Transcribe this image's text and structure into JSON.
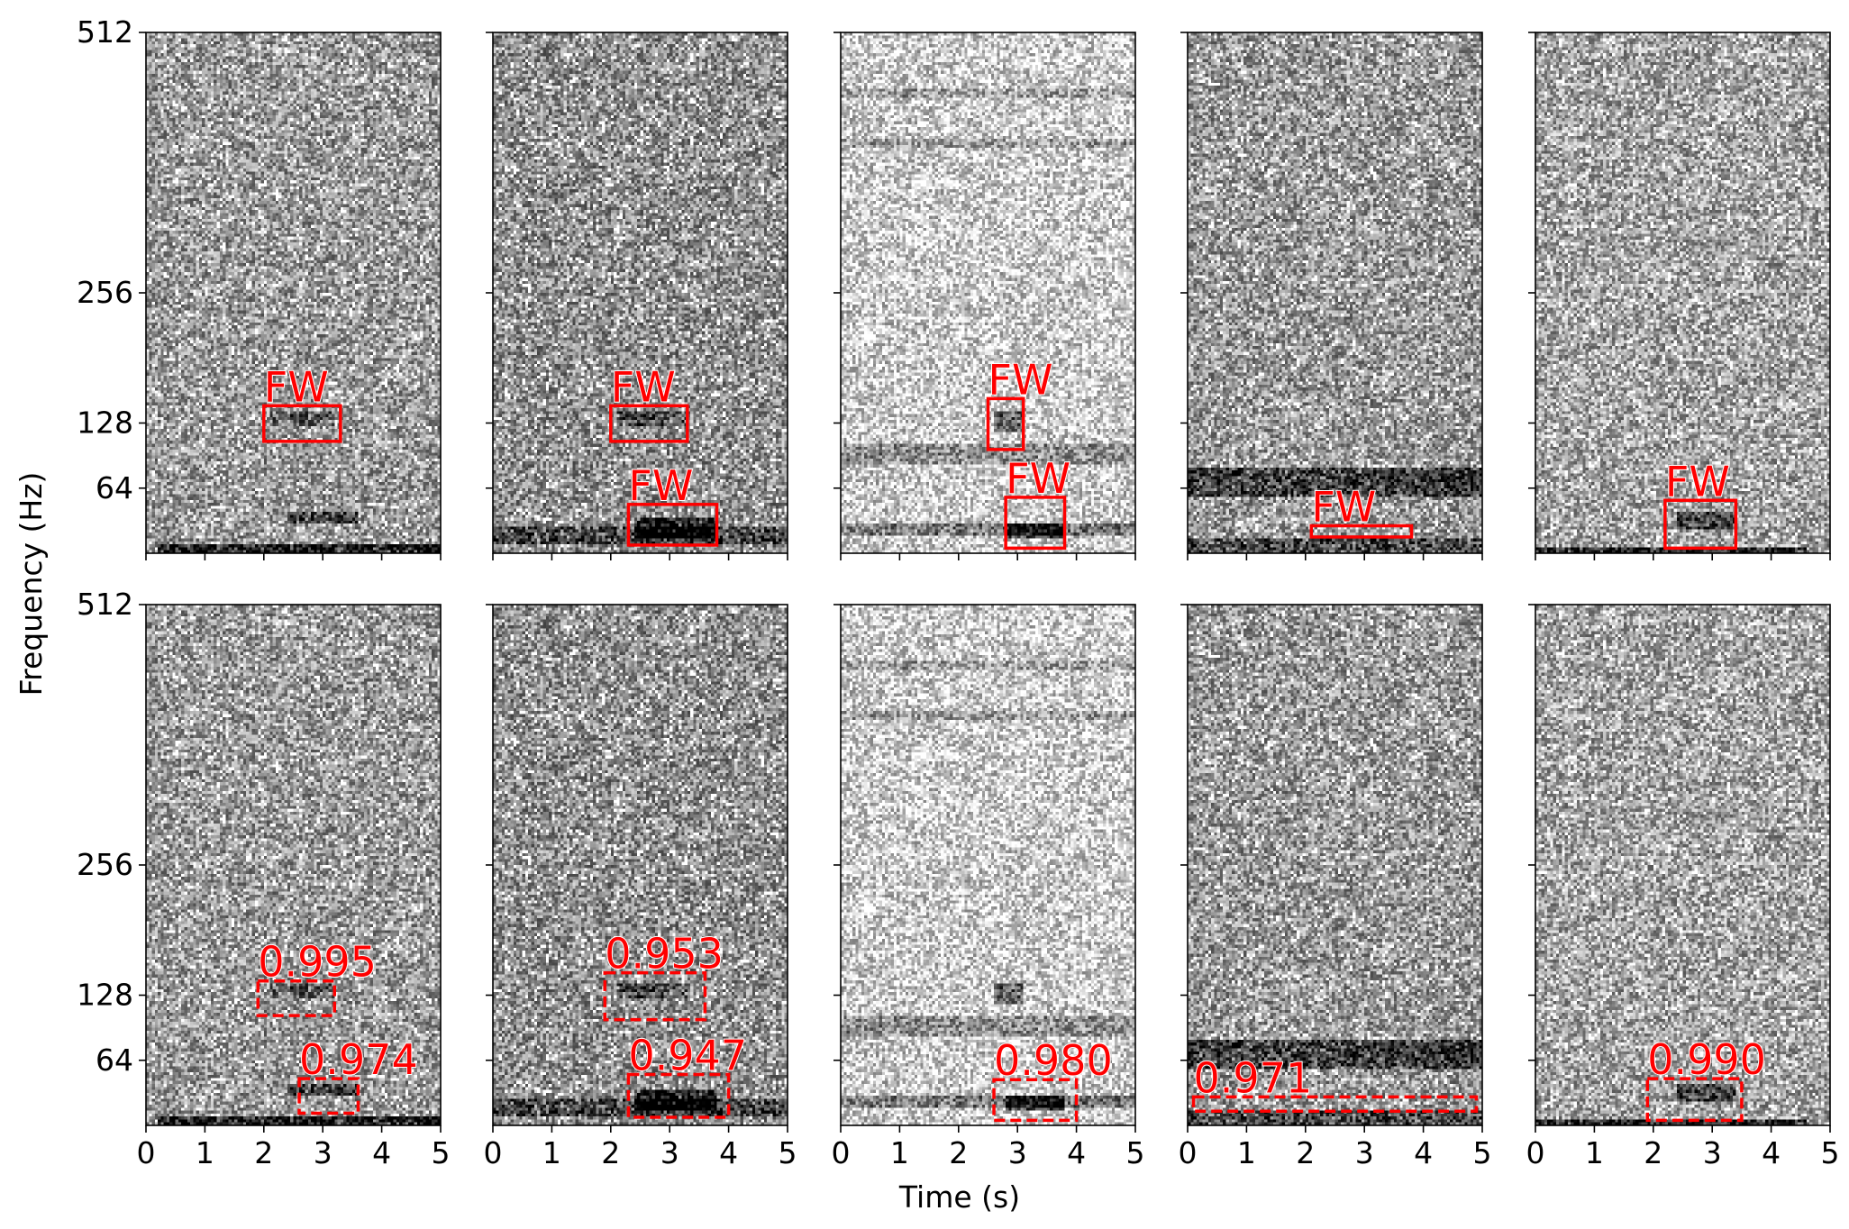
{
  "figure": {
    "xlabel": "Time (s)",
    "ylabel": "Frequency (Hz)",
    "colors": {
      "box": "#ff0000",
      "axis": "#000000"
    }
  },
  "chart_data": {
    "type": "heatmap",
    "grid": false,
    "x_ticks": [
      0,
      1,
      2,
      3,
      4,
      5
    ],
    "xlim": [
      0,
      5
    ],
    "y_ticks": [
      64,
      128,
      256,
      512
    ],
    "y_tick_labels": [
      "64",
      "128",
      "256",
      "512"
    ],
    "ylim": [
      0,
      512
    ],
    "y_scale": "mel-like (nonlinear)",
    "colormap": "grayscale",
    "rows": [
      {
        "row": "top",
        "box_style": "solid"
      },
      {
        "row": "bottom",
        "box_style": "dashed"
      }
    ],
    "panels": [
      {
        "col": 0,
        "gray": 150,
        "features": [
          {
            "t0": 0.2,
            "t1": 5.0,
            "f0": 0,
            "f1": 8,
            "strength": 0.8
          },
          {
            "t0": 2.4,
            "t1": 3.6,
            "f0": 28,
            "f1": 40,
            "strength": 0.55
          },
          {
            "t0": 2.1,
            "t1": 3.2,
            "f0": 125,
            "f1": 140,
            "strength": 0.35
          }
        ],
        "truth_boxes": [
          {
            "label": "FW",
            "t0": 2.0,
            "t1": 3.3,
            "f0": 110,
            "f1": 145
          }
        ],
        "predicted_boxes": [
          {
            "score": "0.995",
            "t0": 1.9,
            "t1": 3.2,
            "f0": 108,
            "f1": 142
          },
          {
            "score": "0.974",
            "t0": 2.6,
            "t1": 3.6,
            "f0": 12,
            "f1": 46
          }
        ]
      },
      {
        "col": 1,
        "gray": 140,
        "features": [
          {
            "t0": 0.0,
            "t1": 5.0,
            "f0": 8,
            "f1": 26,
            "strength": 0.45
          },
          {
            "t0": 2.4,
            "t1": 3.8,
            "f0": 14,
            "f1": 34,
            "strength": 0.7
          },
          {
            "t0": 2.1,
            "t1": 3.3,
            "f0": 125,
            "f1": 140,
            "strength": 0.4
          }
        ],
        "truth_boxes": [
          {
            "label": "FW",
            "t0": 2.0,
            "t1": 3.3,
            "f0": 110,
            "f1": 145
          },
          {
            "label": "FW",
            "t0": 2.3,
            "t1": 3.8,
            "f0": 8,
            "f1": 48
          }
        ],
        "predicted_boxes": [
          {
            "score": "0.953",
            "t0": 1.9,
            "t1": 3.6,
            "f0": 104,
            "f1": 150
          },
          {
            "score": "0.947",
            "t0": 2.3,
            "t1": 4.0,
            "f0": 8,
            "f1": 50
          }
        ]
      },
      {
        "col": 2,
        "gray": 200,
        "features": [
          {
            "t0": 0.0,
            "t1": 5.0,
            "f0": 18,
            "f1": 30,
            "strength": 0.45
          },
          {
            "t0": 0.0,
            "t1": 5.0,
            "f0": 88,
            "f1": 108,
            "strength": 0.35
          },
          {
            "t0": 2.8,
            "t1": 3.8,
            "f0": 14,
            "f1": 30,
            "strength": 0.75
          },
          {
            "t0": 2.6,
            "t1": 3.1,
            "f0": 118,
            "f1": 140,
            "strength": 0.55
          },
          {
            "t0": 0.0,
            "t1": 5.0,
            "f0": 398,
            "f1": 408,
            "strength": 0.25
          },
          {
            "t0": 0.0,
            "t1": 5.0,
            "f0": 448,
            "f1": 458,
            "strength": 0.25
          }
        ],
        "truth_boxes": [
          {
            "label": "FW",
            "t0": 2.5,
            "t1": 3.1,
            "f0": 102,
            "f1": 152
          },
          {
            "label": "FW",
            "t0": 2.8,
            "t1": 3.8,
            "f0": 5,
            "f1": 55
          }
        ],
        "predicted_boxes": [
          {
            "score": "0.980",
            "t0": 2.6,
            "t1": 4.0,
            "f0": 5,
            "f1": 45
          }
        ]
      },
      {
        "col": 3,
        "gray": 150,
        "features": [
          {
            "t0": 0.0,
            "t1": 5.0,
            "f0": 55,
            "f1": 85,
            "strength": 0.55
          },
          {
            "t0": 0.0,
            "t1": 5.0,
            "f0": 0,
            "f1": 14,
            "strength": 0.5
          }
        ],
        "truth_boxes": [
          {
            "label": "FW",
            "t0": 2.1,
            "t1": 3.8,
            "f0": 16,
            "f1": 27
          }
        ],
        "predicted_boxes": [
          {
            "score": "0.971",
            "t0": 0.1,
            "t1": 4.9,
            "f0": 14,
            "f1": 28
          }
        ]
      },
      {
        "col": 4,
        "gray": 160,
        "features": [
          {
            "t0": 0.0,
            "t1": 4.6,
            "f0": 0,
            "f1": 6,
            "strength": 0.8
          },
          {
            "t0": 2.4,
            "t1": 3.4,
            "f0": 24,
            "f1": 40,
            "strength": 0.55
          }
        ],
        "truth_boxes": [
          {
            "label": "FW",
            "t0": 2.2,
            "t1": 3.4,
            "f0": 5,
            "f1": 52
          }
        ],
        "predicted_boxes": [
          {
            "score": "0.990",
            "t0": 1.9,
            "t1": 3.5,
            "f0": 5,
            "f1": 46
          }
        ]
      }
    ]
  }
}
